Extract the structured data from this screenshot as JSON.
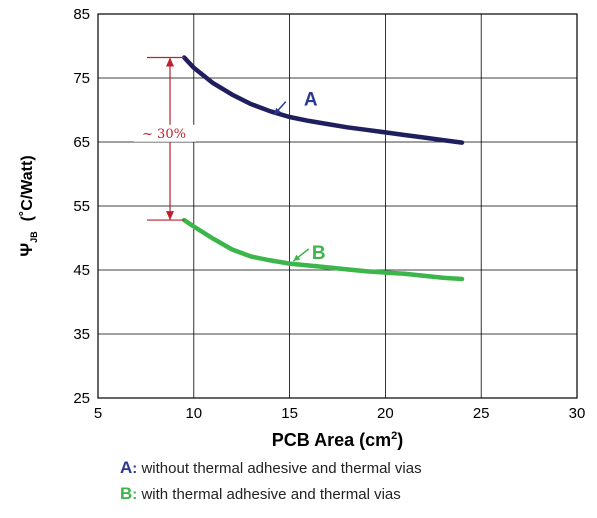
{
  "chart_data": {
    "type": "line",
    "xlabel": "PCB Area (cm",
    "xlabel_sup": "2",
    "xlabel_end": ")",
    "ylabel_main": "Ψ",
    "ylabel_sub": "JB",
    "ylabel_units": "(˚C/Watt)",
    "xlim": [
      5,
      30
    ],
    "ylim": [
      25,
      85
    ],
    "xticks": [
      5,
      10,
      15,
      20,
      25,
      30
    ],
    "yticks": [
      25,
      35,
      45,
      55,
      65,
      75,
      85
    ],
    "grid": true,
    "series": [
      {
        "name": "A",
        "color": "#1f1f5e",
        "label_color": "#2a3b8f",
        "x": [
          9.5,
          10,
          11,
          12,
          13,
          14,
          15,
          16,
          17,
          18,
          19,
          20,
          21,
          22,
          23,
          24
        ],
        "y": [
          78.2,
          76.6,
          74.2,
          72.4,
          70.9,
          69.8,
          68.9,
          68.3,
          67.8,
          67.3,
          66.9,
          66.5,
          66.1,
          65.7,
          65.3,
          64.9
        ]
      },
      {
        "name": "B",
        "color": "#3cb54a",
        "label_color": "#3cb54a",
        "x": [
          9.5,
          10,
          11,
          12,
          13,
          14,
          15,
          16,
          17,
          18,
          19,
          20,
          21,
          22,
          23,
          24
        ],
        "y": [
          52.8,
          51.8,
          49.9,
          48.2,
          47.1,
          46.5,
          46.0,
          45.7,
          45.4,
          45.1,
          44.8,
          44.6,
          44.4,
          44.1,
          43.8,
          43.6
        ]
      }
    ],
    "annotation": {
      "text": "~ 30%",
      "color": "#c01f2f"
    }
  },
  "legend": {
    "a_key": "A",
    "a_text": "without thermal adhesive and thermal vias",
    "b_key": "B",
    "b_text": "with thermal adhesive and thermal vias"
  }
}
